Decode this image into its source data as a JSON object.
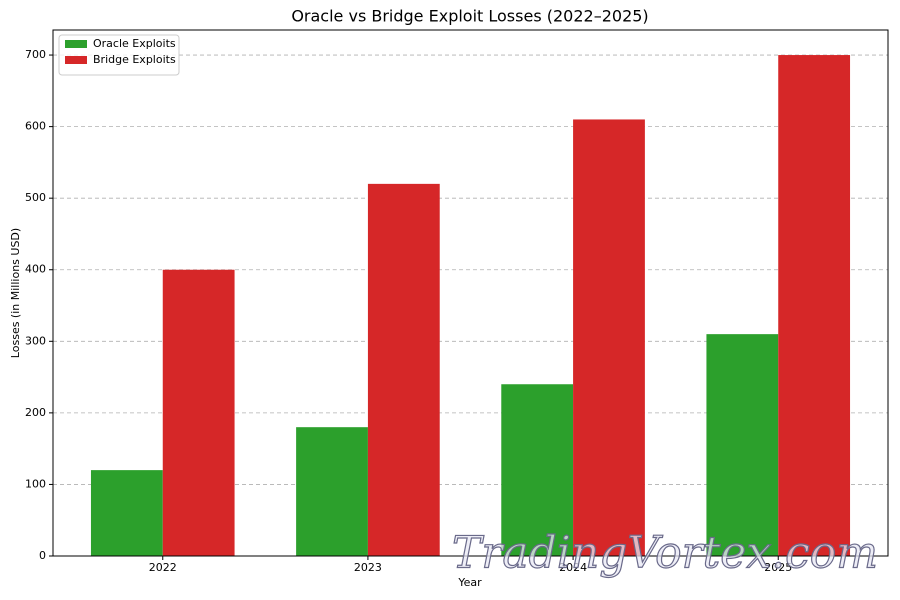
{
  "chart_data": {
    "type": "bar",
    "title": "Oracle vs Bridge Exploit Losses (2022–2025)",
    "xlabel": "Year",
    "ylabel": "Losses (in Millions USD)",
    "categories": [
      "2022",
      "2023",
      "2024",
      "2025"
    ],
    "series": [
      {
        "name": "Oracle Exploits",
        "color": "#2ca02c",
        "values": [
          120,
          180,
          240,
          310
        ]
      },
      {
        "name": "Bridge Exploits",
        "color": "#d62728",
        "values": [
          400,
          520,
          610,
          700
        ]
      }
    ],
    "ylim": [
      0,
      735
    ],
    "yticks": [
      0,
      100,
      200,
      300,
      400,
      500,
      600,
      700
    ],
    "grid": true,
    "legend": "upper left",
    "watermark": "TradingVortex.com"
  }
}
